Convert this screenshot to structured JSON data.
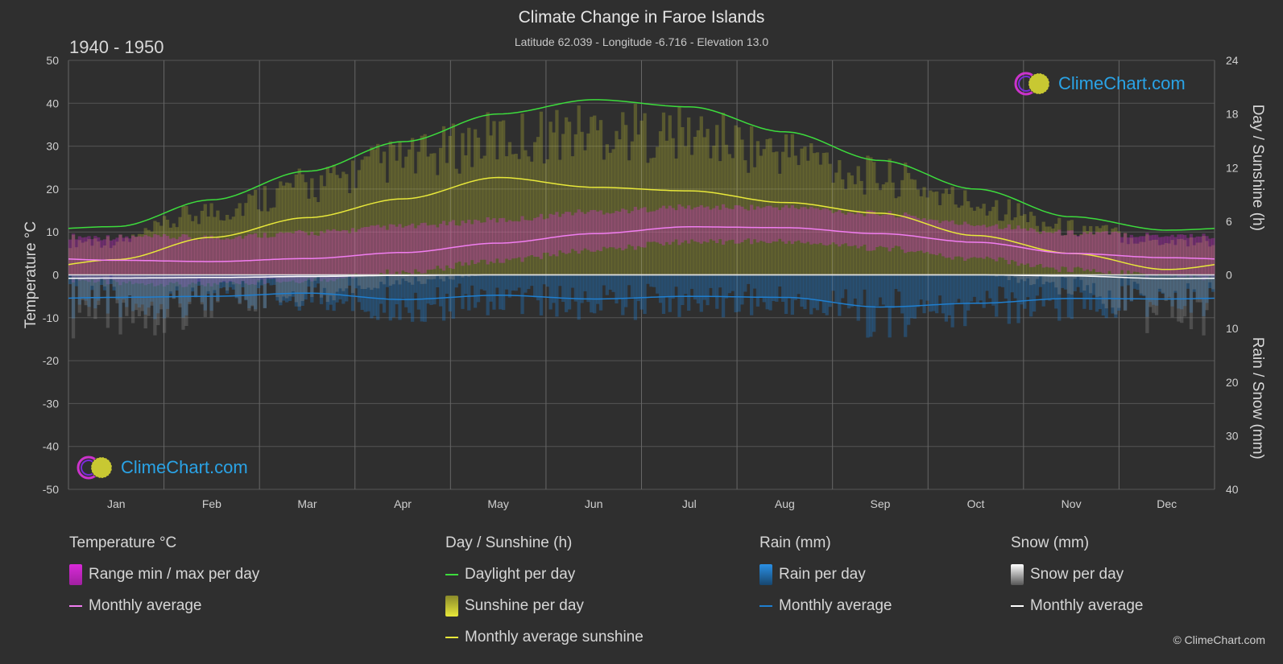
{
  "header": {
    "title": "Climate Change in Faroe Islands",
    "subtitle": "Latitude 62.039 - Longitude -6.716 - Elevation 13.0",
    "period": "1940 - 1950"
  },
  "brand": {
    "logo_text": "ClimeChart.com",
    "copyright": "© ClimeChart.com"
  },
  "colors": {
    "background": "#2f2f2f",
    "daylight": "#3ddc3d",
    "sunshine_bar": "#c8c832",
    "sunshine_avg": "#e8e83a",
    "temp_range": "#d92ad9",
    "temp_avg": "#f07df0",
    "rain": "#1f7fd0",
    "snow": "#ffffff",
    "brand_blue": "#2aa3e6"
  },
  "legend": {
    "temperature": {
      "title": "Temperature °C",
      "items": [
        "Range min / max per day",
        "Monthly average"
      ]
    },
    "sunshine": {
      "title": "Day / Sunshine (h)",
      "items": [
        "Daylight per day",
        "Sunshine per day",
        "Monthly average sunshine"
      ]
    },
    "rain": {
      "title": "Rain (mm)",
      "items": [
        "Rain per day",
        "Monthly average"
      ]
    },
    "snow": {
      "title": "Snow (mm)",
      "items": [
        "Snow per day",
        "Monthly average"
      ]
    }
  },
  "chart_data": {
    "type": "line",
    "categories": [
      "Jan",
      "Feb",
      "Mar",
      "Apr",
      "May",
      "Jun",
      "Jul",
      "Aug",
      "Sep",
      "Oct",
      "Nov",
      "Dec"
    ],
    "axes": {
      "left": {
        "label": "Temperature °C",
        "range": [
          -50,
          50
        ],
        "ticks": [
          50,
          40,
          30,
          20,
          10,
          0,
          -10,
          -20,
          -30,
          -40,
          -50
        ]
      },
      "right_top": {
        "label": "Day / Sunshine (h)",
        "range": [
          0,
          24
        ],
        "ticks": [
          24,
          18,
          12,
          6,
          0
        ]
      },
      "right_bottom": {
        "label": "Rain / Snow (mm)",
        "range": [
          0,
          40
        ],
        "ticks": [
          0,
          10,
          20,
          30,
          40
        ]
      }
    },
    "grid": true,
    "series": [
      {
        "name": "Daylight per day",
        "axis": "right_top",
        "values": [
          5.4,
          8.4,
          11.6,
          14.9,
          18.0,
          19.6,
          18.8,
          16.0,
          12.8,
          9.6,
          6.5,
          5.0
        ]
      },
      {
        "name": "Monthly average sunshine",
        "axis": "right_top",
        "values": [
          1.7,
          4.2,
          6.4,
          8.5,
          10.9,
          9.8,
          9.4,
          8.1,
          6.9,
          4.4,
          2.4,
          0.6
        ]
      },
      {
        "name": "Sunshine per day",
        "axis": "right_top",
        "values": [
          4.0,
          7.5,
          10.5,
          13.5,
          16.0,
          17.0,
          16.5,
          14.5,
          11.5,
          8.5,
          5.5,
          4.0
        ]
      },
      {
        "name": "Temperature monthly average",
        "axis": "left",
        "values": [
          3.4,
          3.1,
          3.8,
          5.2,
          7.4,
          9.6,
          11.2,
          11.0,
          9.6,
          7.6,
          5.0,
          4.0
        ]
      },
      {
        "name": "Temperature range min",
        "axis": "left",
        "values": [
          -1.0,
          -1.5,
          -0.5,
          1.5,
          4.0,
          6.5,
          8.5,
          8.5,
          7.0,
          4.5,
          2.0,
          0.5
        ]
      },
      {
        "name": "Temperature range max",
        "axis": "left",
        "values": [
          8.0,
          8.0,
          9.0,
          10.5,
          12.0,
          14.0,
          15.0,
          15.0,
          13.5,
          11.0,
          9.0,
          8.5
        ]
      },
      {
        "name": "Rain monthly average",
        "axis": "right_bottom",
        "values": [
          4.2,
          4.0,
          3.4,
          4.6,
          3.8,
          4.5,
          4.0,
          4.2,
          6.0,
          5.3,
          4.4,
          4.5
        ]
      },
      {
        "name": "Snow monthly average",
        "axis": "right_bottom",
        "values": [
          0.6,
          0.5,
          0.3,
          0.1,
          0.0,
          0.0,
          0.0,
          0.0,
          0.0,
          0.0,
          0.2,
          0.7
        ]
      }
    ]
  }
}
